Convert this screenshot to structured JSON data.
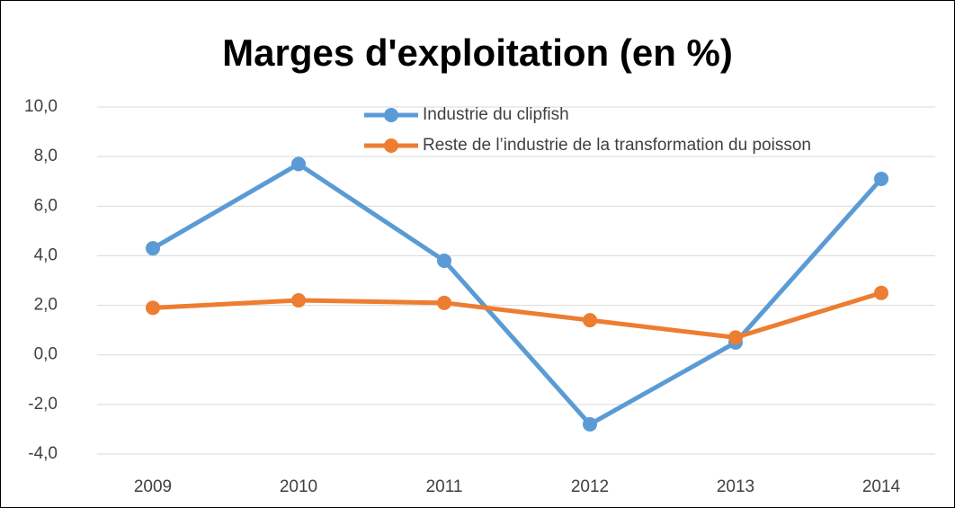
{
  "chart_data": {
    "type": "line",
    "title": "Marges d'exploitation (en %)",
    "categories": [
      "2009",
      "2010",
      "2011",
      "2012",
      "2013",
      "2014"
    ],
    "series": [
      {
        "name": "Industrie du clipfish",
        "color": "#5b9bd5",
        "values": [
          4.3,
          7.7,
          3.8,
          -2.8,
          0.5,
          7.1
        ]
      },
      {
        "name": "Reste de l’industrie de la transformation du poisson",
        "color": "#ed7d31",
        "values": [
          1.9,
          2.2,
          2.1,
          1.4,
          0.7,
          2.5
        ]
      }
    ],
    "ylim": [
      -4,
      10
    ],
    "yticks": [
      {
        "value": -4,
        "label": "-4,0"
      },
      {
        "value": -2,
        "label": "-2,0"
      },
      {
        "value": 0,
        "label": "0,0"
      },
      {
        "value": 2,
        "label": "2,0"
      },
      {
        "value": 4,
        "label": "4,0"
      },
      {
        "value": 6,
        "label": "6,0"
      },
      {
        "value": 8,
        "label": "8,0"
      },
      {
        "value": 10,
        "label": "10,0"
      }
    ],
    "grid": true,
    "legend": "top"
  }
}
